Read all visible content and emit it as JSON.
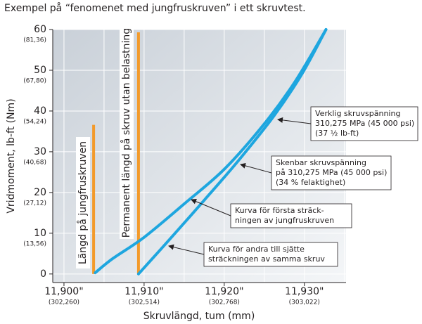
{
  "chart_data": {
    "type": "line",
    "title": "Exempel på “fenomenet med jungfruskruven” i ett skruvtest.",
    "y_label": "Vridmoment, lb-ft (Nm)",
    "x_label": "Skruvlängd, tum (mm)",
    "xlim": [
      11898.6,
      11935.2
    ],
    "ylim": [
      -2.1,
      60
    ],
    "xticks": [
      {
        "value": 11900,
        "label": "11,900\""
      },
      {
        "value": 11910,
        "label": "11,910\""
      },
      {
        "value": 11920,
        "label": "11,920\""
      },
      {
        "value": 11930,
        "label": "11,930\""
      }
    ],
    "xtick_secondary_labels": [
      "(302,260)",
      "(302,514)",
      "(302,768)",
      "(303,022)"
    ],
    "yticks": [
      0,
      10,
      20,
      30,
      40,
      50,
      60
    ],
    "ytick_secondary_labels": [
      null,
      "(13,56)",
      "(27,12)",
      "(40,68)",
      "(54,24)",
      "(67,80)",
      "(81,36)"
    ],
    "xgrid": [
      11900,
      11905,
      11910,
      11915,
      11920,
      11925,
      11930,
      11935
    ],
    "grid": true,
    "series": [
      {
        "name": "Kurva för första sträckningen",
        "color": "#1ea6df",
        "x": [
          11903.9,
          11906.1,
          11910.0,
          11915.0,
          11920.1,
          11925.1,
          11928.9,
          11932.7
        ],
        "values": [
          0.3,
          3.8,
          9.0,
          17.2,
          25.9,
          37.1,
          47.4,
          60
        ]
      },
      {
        "name": "Kurva för andra till sjätte sträckningen",
        "color": "#1ea6df",
        "x": [
          11909.3,
          11913.1,
          11917.5,
          11921.8,
          11926.2,
          11929.7,
          11932.7
        ],
        "values": [
          0,
          8.3,
          18.1,
          27.9,
          38.8,
          49.1,
          60
        ]
      }
    ],
    "markers": [
      {
        "label": "Längd på jungfruskruven",
        "x": 11903.7,
        "value": 36.6,
        "color": "#f39a2a"
      },
      {
        "label": "Permanent längd på skruv utan belastning",
        "x": 11909.3,
        "value": 59.3,
        "color": "#f39a2a"
      }
    ],
    "annotations": [
      {
        "lines": [
          "Verklig skruvspänning",
          "310,275 MPa (45 000 psi)",
          "(37 ½ lb-ft)"
        ]
      },
      {
        "lines": [
          "Skenbar skruvspänning",
          "på 310,275 MPa (45 000 psi)",
          "(34 % felaktighet)"
        ]
      },
      {
        "lines": [
          "Kurva för första sträck-",
          "ningen av jungfruskruven"
        ]
      },
      {
        "lines": [
          "Kurva för andra till sjätte",
          "sträckningen av samma skruv"
        ]
      }
    ]
  }
}
